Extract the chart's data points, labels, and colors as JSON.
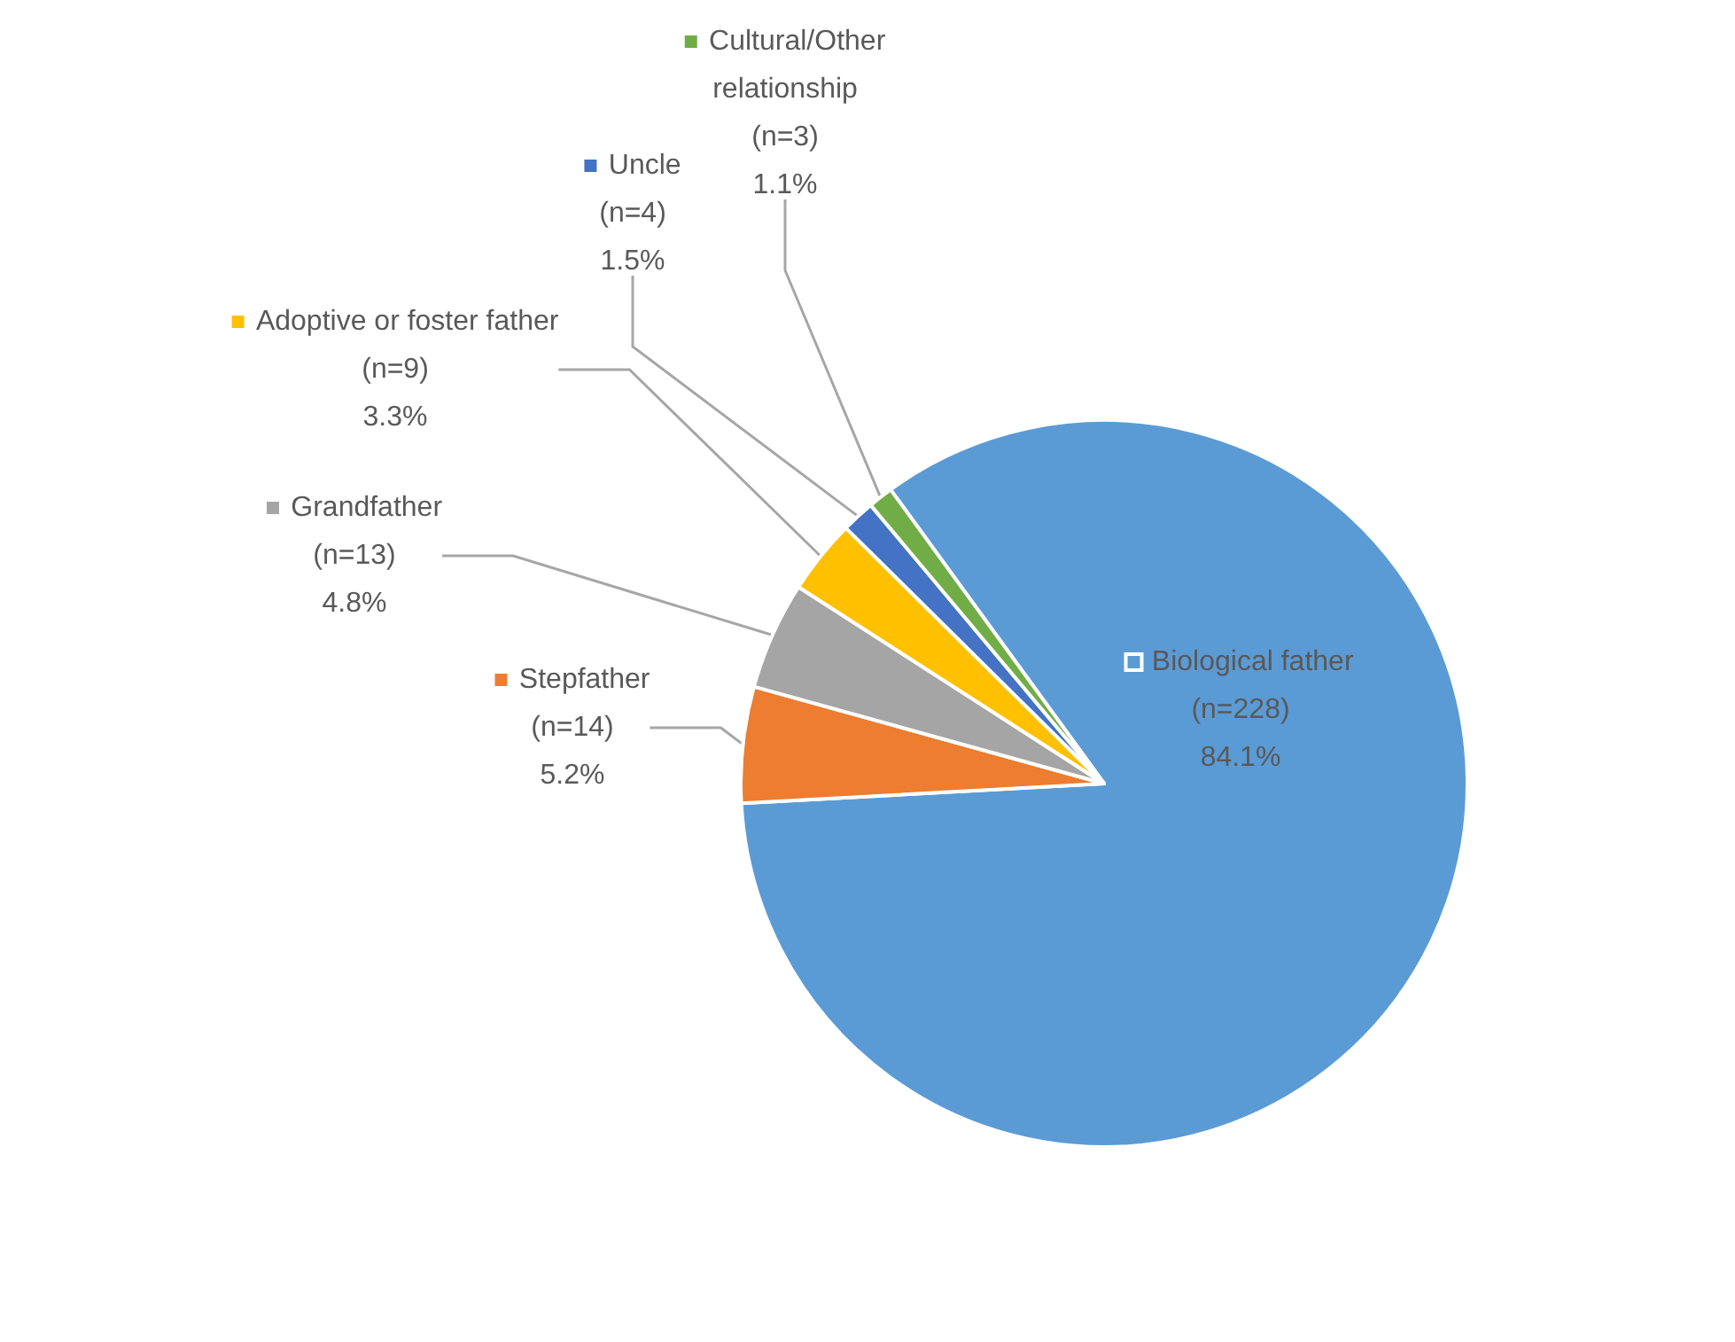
{
  "chart_data": {
    "type": "pie",
    "categories": [
      "Biological father",
      "Stepfather",
      "Grandfather",
      "Adoptive or foster father",
      "Uncle",
      "Cultural/Other relationship"
    ],
    "values": [
      228,
      14,
      13,
      9,
      4,
      3
    ],
    "value_labels": [
      "(n=228)\n84.1%",
      "(n=14)\n5.2%",
      "(n=13)\n4.8%",
      "(n=9)\n3.3%",
      "(n=4)\n1.5%",
      "(n=3)\n1.1%"
    ],
    "colors": [
      "#5b9bd5",
      "#ed7d31",
      "#a5a5a5",
      "#ffc000",
      "#4472c4",
      "#70ad47"
    ],
    "legend": "left"
  }
}
